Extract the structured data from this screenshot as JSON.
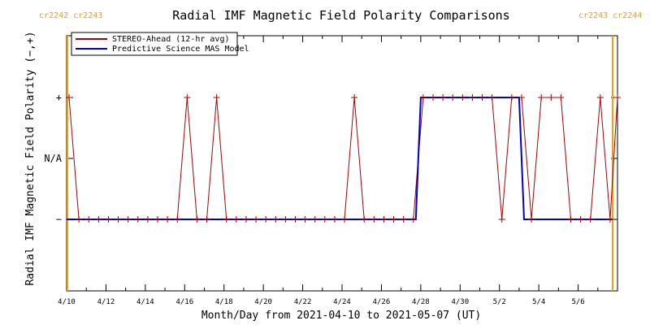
{
  "chart_data": {
    "type": "line",
    "title": "Radial IMF Magnetic Field Polarity Comparisons",
    "xlabel": "Month/Day from 2021-04-10 to 2021-05-07 (UT)",
    "ylabel": "Radial IMF Magnetic Field Polarity (−,+)",
    "x_range": [
      "2021-04-10",
      "2021-05-08"
    ],
    "x_tick_labels": [
      "4/10",
      "4/12",
      "4/14",
      "4/16",
      "4/18",
      "4/20",
      "4/22",
      "4/24",
      "4/26",
      "4/28",
      "4/30",
      "5/2",
      "5/4",
      "5/6"
    ],
    "y_categories": [
      "−",
      "N/A",
      "+"
    ],
    "carrington_labels": {
      "left": "cr2242 cr2243",
      "right": "cr2243 cr2244",
      "left_date": "2021-04-10",
      "right_date": "2021-05-07T18:00"
    },
    "colors": {
      "stereo": "#aa0000",
      "model": "#0000cc",
      "carrington": "#ff9900"
    },
    "legend": {
      "position": "top-left",
      "entries": [
        "STEREO-Ahead (12-hr avg)",
        "Predictive Science MAS Model"
      ]
    },
    "series": [
      {
        "name": "STEREO-Ahead (12-hr avg)",
        "marker": "+",
        "x": [
          "2021-04-10T03:00",
          "2021-04-10T15:00",
          "2021-04-11T03:00",
          "2021-04-11T15:00",
          "2021-04-12T03:00",
          "2021-04-12T15:00",
          "2021-04-13T03:00",
          "2021-04-13T15:00",
          "2021-04-14T03:00",
          "2021-04-14T15:00",
          "2021-04-15T03:00",
          "2021-04-15T15:00",
          "2021-04-16T03:00",
          "2021-04-16T15:00",
          "2021-04-17T03:00",
          "2021-04-17T15:00",
          "2021-04-18T03:00",
          "2021-04-18T15:00",
          "2021-04-19T03:00",
          "2021-04-19T15:00",
          "2021-04-20T03:00",
          "2021-04-20T15:00",
          "2021-04-21T03:00",
          "2021-04-21T15:00",
          "2021-04-22T03:00",
          "2021-04-22T15:00",
          "2021-04-23T03:00",
          "2021-04-23T15:00",
          "2021-04-24T03:00",
          "2021-04-24T15:00",
          "2021-04-25T03:00",
          "2021-04-25T15:00",
          "2021-04-26T03:00",
          "2021-04-26T15:00",
          "2021-04-27T03:00",
          "2021-04-27T15:00",
          "2021-04-28T03:00",
          "2021-04-28T15:00",
          "2021-04-29T03:00",
          "2021-04-29T15:00",
          "2021-04-30T03:00",
          "2021-04-30T15:00",
          "2021-05-01T03:00",
          "2021-05-01T15:00",
          "2021-05-02T03:00",
          "2021-05-02T15:00",
          "2021-05-03T03:00",
          "2021-05-03T15:00",
          "2021-05-04T03:00",
          "2021-05-04T15:00",
          "2021-05-05T03:00",
          "2021-05-05T15:00",
          "2021-05-06T03:00",
          "2021-05-06T15:00",
          "2021-05-07T03:00",
          "2021-05-07T15:00",
          "2021-05-08T00:00"
        ],
        "y": [
          1,
          -1,
          -1,
          -1,
          -1,
          -1,
          -1,
          -1,
          -1,
          -1,
          -1,
          -1,
          1,
          -1,
          -1,
          1,
          -1,
          -1,
          -1,
          -1,
          -1,
          -1,
          -1,
          -1,
          -1,
          -1,
          -1,
          -1,
          -1,
          1,
          -1,
          -1,
          -1,
          -1,
          -1,
          -1,
          1,
          1,
          1,
          1,
          1,
          1,
          1,
          1,
          -1,
          1,
          1,
          -1,
          1,
          1,
          1,
          -1,
          -1,
          -1,
          1,
          -1,
          1
        ]
      },
      {
        "name": "Predictive Science MAS Model",
        "x": [
          "2021-04-10T00:00",
          "2021-04-27T18:00",
          "2021-04-28T00:00",
          "2021-05-03T00:00",
          "2021-05-03T06:00",
          "2021-05-07T18:00"
        ],
        "y": [
          -1,
          -1,
          1,
          1,
          -1,
          -1
        ]
      }
    ]
  }
}
